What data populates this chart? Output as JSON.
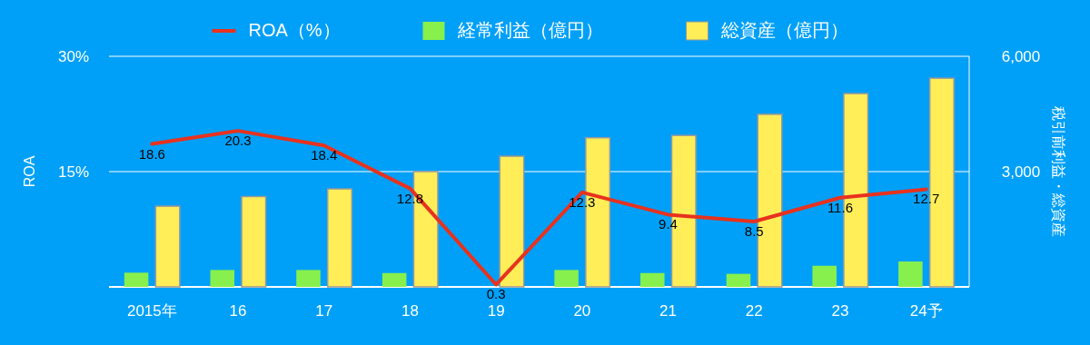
{
  "chart_data": {
    "type": "bar",
    "categories": [
      "2015年",
      "16",
      "17",
      "18",
      "19",
      "20",
      "21",
      "22",
      "23",
      "24予"
    ],
    "ylabel": "ROA",
    "y2label": "税引前利益・総資産",
    "ylim": [
      0,
      30
    ],
    "yticks": [
      {
        "value": 0,
        "label": null
      },
      {
        "value": 15,
        "label": "15%"
      },
      {
        "value": 30,
        "label": "30%"
      }
    ],
    "y2lim": [
      0,
      6000
    ],
    "y2ticks": [
      {
        "value": 3000,
        "label": "3,000"
      },
      {
        "value": 6000,
        "label": "6,000"
      }
    ],
    "grid": "y",
    "legend": "top",
    "series": [
      {
        "name": "ROA（%）",
        "type": "line",
        "color": "#e8321e",
        "values": [
          18.6,
          20.3,
          18.4,
          12.8,
          0.3,
          12.3,
          9.4,
          8.5,
          11.6,
          12.7
        ],
        "value_labels": [
          "18.6",
          "20.3",
          "18.4",
          "12.8",
          "0.3",
          "12.3",
          "9.4",
          "8.5",
          "11.6",
          "12.7"
        ]
      },
      {
        "name": "経常利益（億円）",
        "axis": "y2",
        "color": "#88f04c",
        "values": [
          370,
          440,
          440,
          360,
          0,
          440,
          360,
          340,
          550,
          660
        ]
      },
      {
        "name": "総資産（億円）",
        "axis": "y2",
        "color": "#ffee58",
        "values": [
          2100,
          2350,
          2550,
          3000,
          3400,
          3880,
          3940,
          4490,
          5030,
          5430
        ]
      }
    ]
  }
}
